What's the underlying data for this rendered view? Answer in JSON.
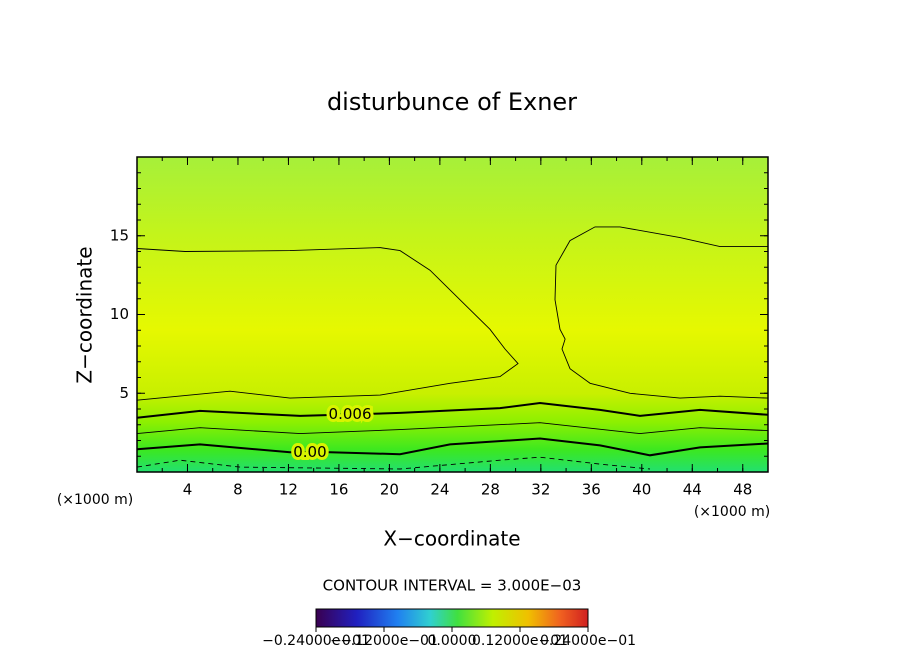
{
  "chart_data": {
    "type": "contour",
    "title": "disturbunce of Exner",
    "xlabel": "X−coordinate",
    "ylabel": "Z−coordinate",
    "x_unit_left": "(×1000 m)",
    "x_unit_right": "(×1000 m)",
    "contour_interval": "CONTOUR INTERVAL = 3.000E−03",
    "xlim": [
      0,
      50
    ],
    "ylim": [
      0,
      20
    ],
    "xticks": [
      4,
      8,
      12,
      16,
      20,
      24,
      28,
      32,
      36,
      40,
      44,
      48
    ],
    "yticks": [
      5,
      10,
      15
    ],
    "contours": [
      {
        "level": 0.009,
        "x": [
          0,
          3.8,
          12.12,
          19.26,
          20.84,
          23.22,
          25.59,
          27.97,
          29.16,
          30.19,
          28.76,
          24.8,
          19.26,
          12.12,
          7.37,
          0
        ],
        "y": [
          14.19,
          14.0,
          14.06,
          14.25,
          14.06,
          12.81,
          10.94,
          9.06,
          7.81,
          6.88,
          6.06,
          5.63,
          4.88,
          4.69,
          5.13,
          4.56
        ]
      },
      {
        "level": 0.009,
        "x": [
          50,
          46.2,
          43.03,
          38.27,
          36.29,
          34.31,
          33.2,
          33.12,
          33.52,
          33.92,
          33.68,
          34.31,
          35.9,
          39.07,
          43.03,
          46.2,
          50
        ],
        "y": [
          14.31,
          14.31,
          14.88,
          15.56,
          15.56,
          14.69,
          13.13,
          10.94,
          9.06,
          8.44,
          7.81,
          6.56,
          5.63,
          5.0,
          4.69,
          4.81,
          4.69
        ]
      },
      {
        "level": 0.006,
        "label": "0.006",
        "x": [
          0,
          4.99,
          12.92,
          20.84,
          28.76,
          31.93,
          36.69,
          39.86,
          44.61,
          50
        ],
        "y": [
          3.44,
          3.88,
          3.56,
          3.75,
          4.06,
          4.38,
          3.94,
          3.56,
          3.94,
          3.63
        ]
      },
      {
        "level": 0.003,
        "x": [
          0,
          4.99,
          12.92,
          20.84,
          31.93,
          39.86,
          44.61,
          50
        ],
        "y": [
          2.44,
          2.81,
          2.44,
          2.69,
          3.13,
          2.44,
          2.81,
          2.63
        ]
      },
      {
        "level": 0,
        "label": "0.00",
        "x": [
          0,
          4.99,
          12.12,
          15.29,
          20.84,
          24.8,
          31.93,
          36.69,
          40.65,
          44.61,
          50
        ],
        "y": [
          1.44,
          1.75,
          1.25,
          1.25,
          1.13,
          1.75,
          2.13,
          1.69,
          1.06,
          1.56,
          1.81
        ]
      },
      {
        "level": -0.003,
        "x": [
          0,
          3.4,
          8.16,
          20.84,
          28.76,
          31.93,
          36.69,
          40.65
        ],
        "y": [
          0.31,
          0.75,
          0.31,
          0.19,
          0.75,
          0.94,
          0.5,
          0.19
        ]
      }
    ],
    "colorbar": {
      "lim": [
        -0.024,
        0.024
      ],
      "ticks": [
        {
          "value": -0.024,
          "label": "−0.24000e−01"
        },
        {
          "value": -0.012,
          "label": "−0.12000e−01"
        },
        {
          "value": 0,
          "label": "0.0000"
        },
        {
          "value": 0.012,
          "label": "0.12000e−01"
        },
        {
          "value": 0.024,
          "label": "0.24000e−01"
        }
      ]
    }
  }
}
